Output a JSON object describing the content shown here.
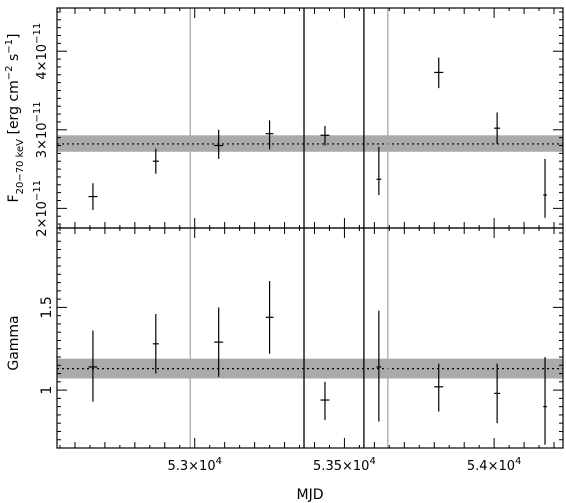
{
  "chart_data": [
    {
      "type": "scatter",
      "title": "",
      "ylabel_main": "F",
      "ylabel_sub": "20−70 keV",
      "ylabel_unit": "[erg cm",
      "ylabel_unit_exp1": "−2",
      "ylabel_unit_mid": " s",
      "ylabel_unit_exp2": "−1",
      "ylabel_unit_end": "]",
      "ylim": [
        1.75e-11,
        4.55e-11
      ],
      "yticks": [
        {
          "value": 2e-11,
          "mantissa": "2×10",
          "exp": "−11"
        },
        {
          "value": 3e-11,
          "mantissa": "3×10",
          "exp": "−11"
        },
        {
          "value": 4e-11,
          "mantissa": "4×10",
          "exp": "−11"
        }
      ],
      "mean": 2.82e-11,
      "band": [
        2.72e-11,
        2.93e-11
      ],
      "points": [
        {
          "x": 52660,
          "xerr": 15,
          "y": 2.15e-11,
          "ylo": 1.98e-11,
          "yhi": 2.32e-11
        },
        {
          "x": 52870,
          "xerr": 10,
          "y": 2.6e-11,
          "ylo": 2.44e-11,
          "yhi": 2.76e-11
        },
        {
          "x": 53080,
          "xerr": 15,
          "y": 2.8e-11,
          "ylo": 2.63e-11,
          "yhi": 3e-11
        },
        {
          "x": 53250,
          "xerr": 13,
          "y": 2.95e-11,
          "ylo": 2.75e-11,
          "yhi": 3.12e-11
        },
        {
          "x": 53435,
          "xerr": 15,
          "y": 2.93e-11,
          "ylo": 2.8e-11,
          "yhi": 3.05e-11
        },
        {
          "x": 53615,
          "xerr": 8,
          "y": 2.37e-11,
          "ylo": 2.17e-11,
          "yhi": 2.78e-11
        },
        {
          "x": 53815,
          "xerr": 15,
          "y": 3.73e-11,
          "ylo": 3.53e-11,
          "yhi": 3.92e-11
        },
        {
          "x": 54010,
          "xerr": 10,
          "y": 3.02e-11,
          "ylo": 2.82e-11,
          "yhi": 3.22e-11
        },
        {
          "x": 54170,
          "xerr": 6,
          "y": 2.17e-11,
          "ylo": 1.88e-11,
          "yhi": 2.63e-11
        }
      ]
    },
    {
      "type": "scatter",
      "title": "",
      "ylabel": "Gamma",
      "xlabel": "MJD",
      "ylim": [
        0.65,
        1.98
      ],
      "yticks": [
        {
          "value": 1.0,
          "label": "1"
        },
        {
          "value": 1.5,
          "label": "1.5"
        }
      ],
      "mean": 1.13,
      "band": [
        1.07,
        1.19
      ],
      "points": [
        {
          "x": 52660,
          "xerr": 15,
          "y": 1.14,
          "ylo": 0.93,
          "yhi": 1.36
        },
        {
          "x": 52870,
          "xerr": 10,
          "y": 1.28,
          "ylo": 1.1,
          "yhi": 1.46
        },
        {
          "x": 53080,
          "xerr": 15,
          "y": 1.29,
          "ylo": 1.08,
          "yhi": 1.5
        },
        {
          "x": 53250,
          "xerr": 13,
          "y": 1.44,
          "ylo": 1.22,
          "yhi": 1.66
        },
        {
          "x": 53435,
          "xerr": 15,
          "y": 0.94,
          "ylo": 0.82,
          "yhi": 1.05
        },
        {
          "x": 53615,
          "xerr": 8,
          "y": 1.14,
          "ylo": 0.81,
          "yhi": 1.48
        },
        {
          "x": 53815,
          "xerr": 15,
          "y": 1.02,
          "ylo": 0.87,
          "yhi": 1.16
        },
        {
          "x": 54010,
          "xerr": 10,
          "y": 0.98,
          "ylo": 0.8,
          "yhi": 1.16
        },
        {
          "x": 54170,
          "xerr": 6,
          "y": 0.9,
          "ylo": 0.67,
          "yhi": 1.2
        }
      ]
    }
  ],
  "shared_x": {
    "xlim": [
      52540,
      54230
    ],
    "xticks": [
      {
        "value": 53000,
        "mantissa": "5.3×10",
        "exp": "4"
      },
      {
        "value": 53500,
        "mantissa": "5.35×10",
        "exp": "4"
      },
      {
        "value": 54000,
        "mantissa": "5.4×10",
        "exp": "4"
      }
    ],
    "minor_step": 50,
    "vlines_gray": [
      52985,
      53645
    ],
    "vlines_black": [
      53365,
      53565
    ],
    "colors": {
      "band": "#aaaaaa",
      "gray_line": "#aaaaaa",
      "axis": "#000000"
    }
  }
}
